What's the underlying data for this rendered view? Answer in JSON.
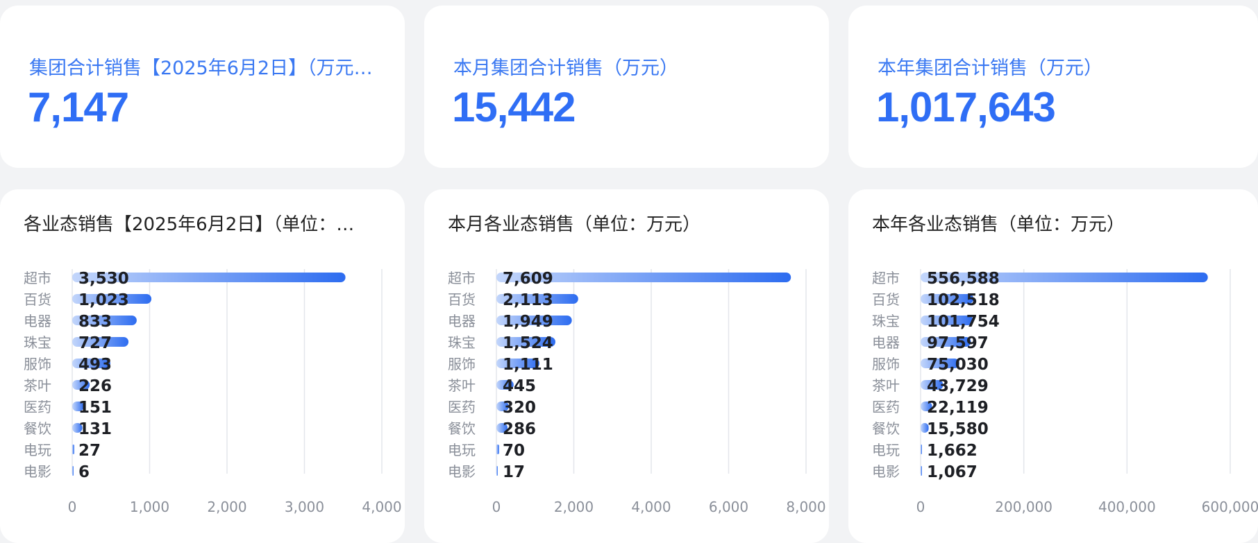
{
  "kpis": [
    {
      "title": "集团合计销售【2025年6月2日】（万元…",
      "value": "7,147"
    },
    {
      "title": "本月集团合计销售（万元）",
      "value": "15,442"
    },
    {
      "title": "本年集团合计销售（万元）",
      "value": "1,017,643"
    }
  ],
  "colors": {
    "accent": "#2f6ef5",
    "bar_start": "#c3d6fb",
    "bar_end": "#2d6cf0",
    "grid": "#e3e6eb"
  },
  "chart_data": [
    {
      "type": "bar",
      "orientation": "horizontal",
      "title": "各业态销售【2025年6月2日】（单位：…",
      "categories": [
        "超市",
        "百货",
        "电器",
        "珠宝",
        "服饰",
        "茶叶",
        "医药",
        "餐饮",
        "电玩",
        "电影"
      ],
      "values": [
        3530,
        1023,
        833,
        727,
        493,
        226,
        151,
        131,
        27,
        6
      ],
      "value_labels": [
        "3,530",
        "1,023",
        "833",
        "727",
        "493",
        "226",
        "151",
        "131",
        "27",
        "6"
      ],
      "xlim": [
        0,
        4000
      ],
      "ticks": [
        0,
        1000,
        2000,
        3000,
        4000
      ],
      "tick_labels": [
        "0",
        "1,000",
        "2,000",
        "3,000",
        "4,000"
      ],
      "grid": true
    },
    {
      "type": "bar",
      "orientation": "horizontal",
      "title": "本月各业态销售（单位：万元）",
      "categories": [
        "超市",
        "百货",
        "电器",
        "珠宝",
        "服饰",
        "茶叶",
        "医药",
        "餐饮",
        "电玩",
        "电影"
      ],
      "values": [
        7609,
        2113,
        1949,
        1524,
        1111,
        445,
        320,
        286,
        70,
        17
      ],
      "value_labels": [
        "7,609",
        "2,113",
        "1,949",
        "1,524",
        "1,111",
        "445",
        "320",
        "286",
        "70",
        "17"
      ],
      "xlim": [
        0,
        8000
      ],
      "ticks": [
        0,
        2000,
        4000,
        6000,
        8000
      ],
      "tick_labels": [
        "0",
        "2,000",
        "4,000",
        "6,000",
        "8,000"
      ],
      "grid": true
    },
    {
      "type": "bar",
      "orientation": "horizontal",
      "title": "本年各业态销售（单位：万元）",
      "categories": [
        "超市",
        "百货",
        "珠宝",
        "电器",
        "服饰",
        "茶叶",
        "医药",
        "餐饮",
        "电玩",
        "电影"
      ],
      "values": [
        556588,
        102518,
        101754,
        97597,
        75030,
        43729,
        22119,
        15580,
        1662,
        1067
      ],
      "value_labels": [
        "556,588",
        "102,518",
        "101,754",
        "97,597",
        "75,030",
        "43,729",
        "22,119",
        "15,580",
        "1,662",
        "1,067"
      ],
      "xlim": [
        0,
        600000
      ],
      "ticks": [
        0,
        200000,
        400000,
        600000
      ],
      "tick_labels": [
        "0",
        "200,000",
        "400,000",
        "600,000"
      ],
      "grid": true
    }
  ]
}
